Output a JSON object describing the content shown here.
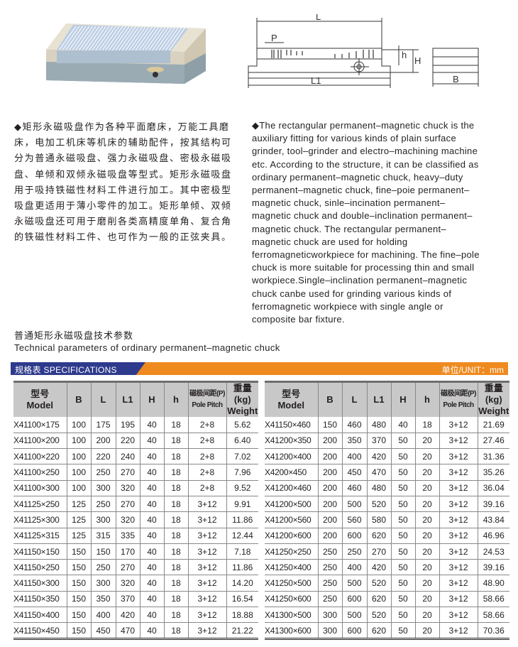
{
  "intro_cn": [
    "◆矩形永磁吸盘作为各种平面磨床，万能工具磨",
    "床，电加工机床等机床的辅助配件，按其结构可",
    "分为普通永磁吸盘、强力永磁吸盘、密极永磁吸",
    "盘、单倾和双倾永磁吸盘等型式。矩形永磁吸盘",
    "用于吸持铁磁性材料工件进行加工。其中密极型",
    "吸盘更适用于薄小零件的加工。矩形单倾、双倾",
    "永磁吸盘还可用于磨削各类高精度单角、复合角",
    "的铁磁性材料工件、也可作为一般的正弦夹具。"
  ],
  "intro_en": [
    "◆The rectangular permanent–magnetic chuck is the",
    "auxiliary fitting for various kinds of plain surface",
    "grinder, tool–grinder and electro–machining machine",
    "etc. According to the structure, it can be classified as",
    "ordinary permanent–magnetic chuck, heavy–duty",
    "permanent–magnetic chuck, fine–poie permanent–",
    "magnetic chuck, sinle–incination  permanent–",
    "magnetic chuck and double–inclination permanent–",
    "magnetic  chuck.  The  rectangular  permanent–",
    "magnetic chuck are used for holding",
    "ferromagneticworkpiece for machining. The fine–pole",
    "chuck is more suitable for processing thin and small",
    "workpiece.Single–inclination permanent–magnetic",
    "chuck canbe used for grinding various kinds of",
    "ferromagnetic workpiece with single angle or",
    "composite bar fixture."
  ],
  "diagram_labels": {
    "L": "L",
    "P": "P",
    "h": "h",
    "H": "H",
    "L1": "L1",
    "B": "B"
  },
  "heading_cn": "普通矩形永磁吸盘技术参数",
  "heading_en": "Technical parameters of ordinary permanent–magnetic chuck",
  "banner": {
    "left": "规格表  SPECIFICATIONS",
    "right": "单位/UNIT：mm",
    "colors": {
      "blue": "#2e3a8c",
      "orange": "#ef8a1f"
    }
  },
  "columns": {
    "model_cn": "型号",
    "model_en": "Model",
    "b": "B",
    "l": "L",
    "l1": "L1",
    "H": "H",
    "h": "h",
    "pitch_cn": "磁极间距(P)",
    "pitch_en": "Pole Pitch",
    "weight_cn": "重量(kg)",
    "weight_en": "Weight"
  },
  "left_rows": [
    [
      "X41100×175",
      "100",
      "175",
      "195",
      "40",
      "18",
      "2+8",
      "5.62"
    ],
    [
      "X41100×200",
      "100",
      "200",
      "220",
      "40",
      "18",
      "2+8",
      "6.40"
    ],
    [
      "X41100×220",
      "100",
      "220",
      "240",
      "40",
      "18",
      "2+8",
      "7.02"
    ],
    [
      "X41100×250",
      "100",
      "250",
      "270",
      "40",
      "18",
      "2+8",
      "7.96"
    ],
    [
      "X41100×300",
      "100",
      "300",
      "320",
      "40",
      "18",
      "2+8",
      "9.52"
    ],
    [
      "X41125×250",
      "125",
      "250",
      "270",
      "40",
      "18",
      "3+12",
      "9.91"
    ],
    [
      "X41125×300",
      "125",
      "300",
      "320",
      "40",
      "18",
      "3+12",
      "11.86"
    ],
    [
      "X41125×315",
      "125",
      "315",
      "335",
      "40",
      "18",
      "3+12",
      "12.44"
    ],
    [
      "X41150×150",
      "150",
      "150",
      "170",
      "40",
      "18",
      "3+12",
      "7.18"
    ],
    [
      "X41150×250",
      "150",
      "250",
      "270",
      "40",
      "18",
      "3+12",
      "11.86"
    ],
    [
      "X41150×300",
      "150",
      "300",
      "320",
      "40",
      "18",
      "3+12",
      "14.20"
    ],
    [
      "X41150×350",
      "150",
      "350",
      "370",
      "40",
      "18",
      "3+12",
      "16.54"
    ],
    [
      "X41150×400",
      "150",
      "400",
      "420",
      "40",
      "18",
      "3+12",
      "18.88"
    ],
    [
      "X41150×450",
      "150",
      "450",
      "470",
      "40",
      "18",
      "3+12",
      "21.22"
    ]
  ],
  "right_rows": [
    [
      "X41150×460",
      "150",
      "460",
      "480",
      "40",
      "18",
      "3+12",
      "21.69"
    ],
    [
      "X41200×350",
      "200",
      "350",
      "370",
      "50",
      "20",
      "3+12",
      "27.46"
    ],
    [
      "X41200×400",
      "200",
      "400",
      "420",
      "50",
      "20",
      "3+12",
      "31.36"
    ],
    [
      "X4200×450",
      "200",
      "450",
      "470",
      "50",
      "20",
      "3+12",
      "35.26"
    ],
    [
      "X41200×460",
      "200",
      "460",
      "480",
      "50",
      "20",
      "3+12",
      "36.04"
    ],
    [
      "X41200×500",
      "200",
      "500",
      "520",
      "50",
      "20",
      "3+12",
      "39.16"
    ],
    [
      "X41200×560",
      "200",
      "560",
      "580",
      "50",
      "20",
      "3+12",
      "43.84"
    ],
    [
      "X41200×600",
      "200",
      "600",
      "620",
      "50",
      "20",
      "3+12",
      "46.96"
    ],
    [
      "X41250×250",
      "250",
      "250",
      "270",
      "50",
      "20",
      "3+12",
      "24.53"
    ],
    [
      "X41250×400",
      "250",
      "400",
      "420",
      "50",
      "20",
      "3+12",
      "39.16"
    ],
    [
      "X41250×500",
      "250",
      "500",
      "520",
      "50",
      "20",
      "3+12",
      "48.90"
    ],
    [
      "X41250×600",
      "250",
      "600",
      "620",
      "50",
      "20",
      "3+12",
      "58.66"
    ],
    [
      "X41300×500",
      "300",
      "500",
      "520",
      "50",
      "20",
      "3+12",
      "58.66"
    ],
    [
      "X41300×600",
      "300",
      "600",
      "620",
      "50",
      "20",
      "3+12",
      "70.36"
    ]
  ]
}
